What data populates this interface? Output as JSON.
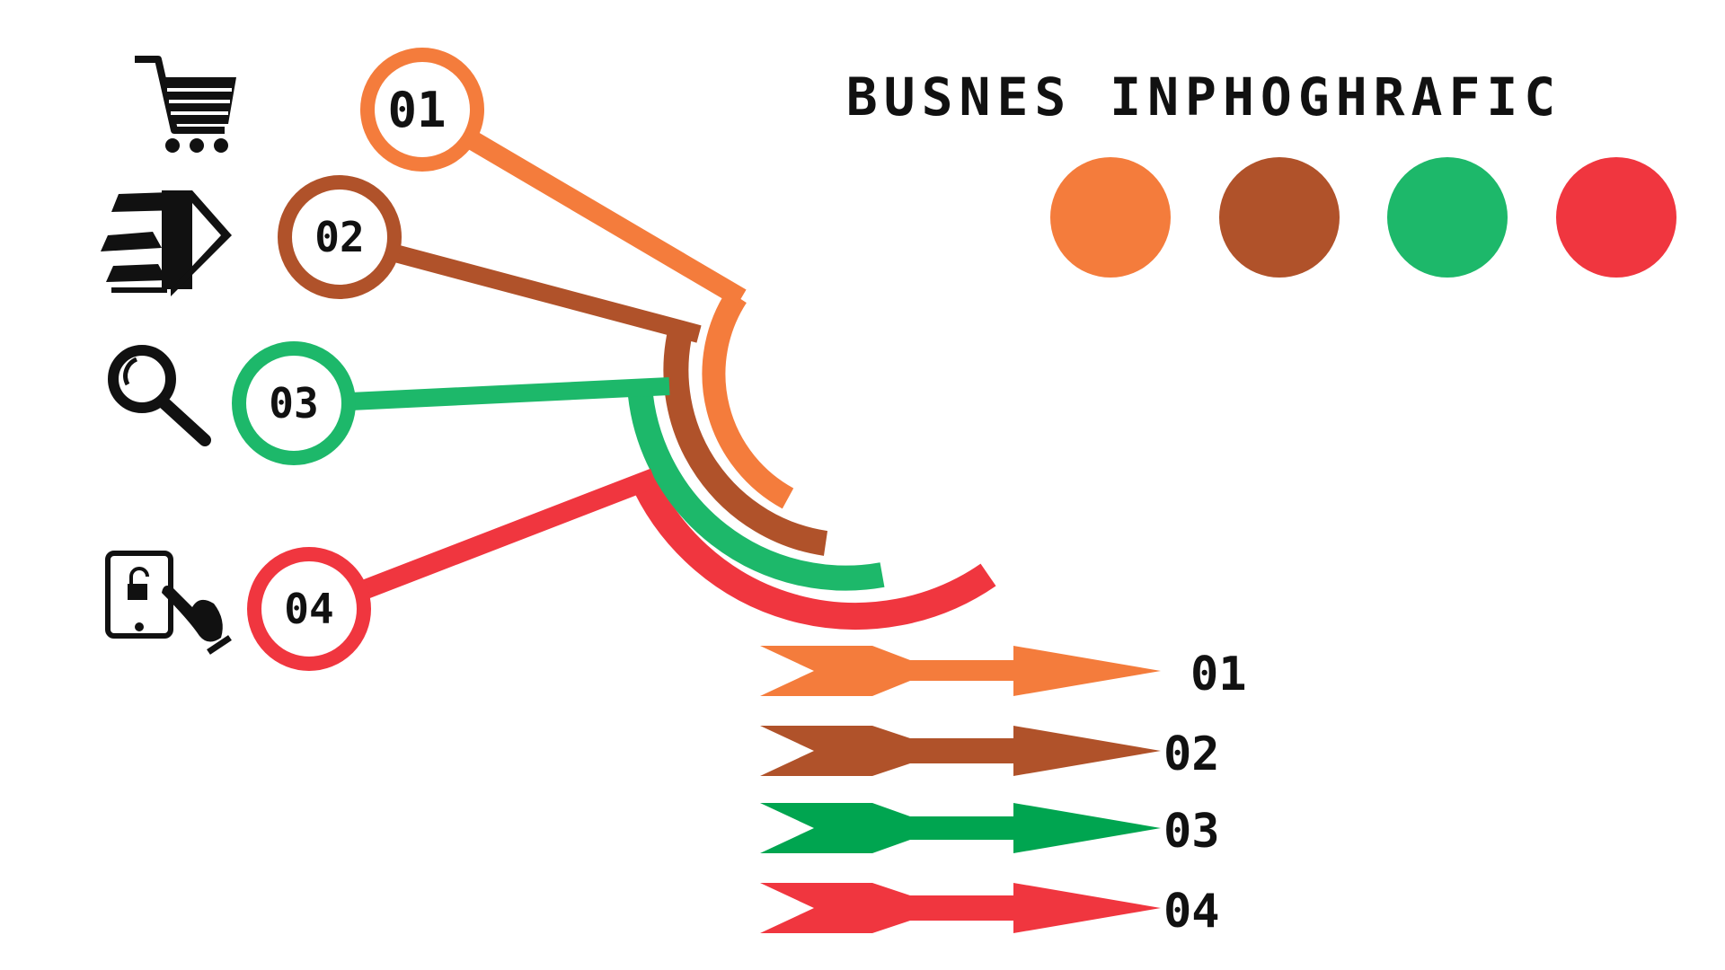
{
  "title": "BUSNES INPHOGHRAFIC",
  "colors": {
    "orange": "#f47c3c",
    "brown": "#b0522a",
    "green": "#1db86a",
    "red": "#f0363f",
    "ink": "#111111"
  },
  "swatches": [
    "orange",
    "brown",
    "green",
    "red"
  ],
  "items": [
    {
      "number": "01",
      "color": "orange",
      "icon": "shopping-cart-icon"
    },
    {
      "number": "02",
      "color": "brown",
      "icon": "fast-document-icon"
    },
    {
      "number": "03",
      "color": "green",
      "icon": "magnifier-search-icon"
    },
    {
      "number": "04",
      "color": "red",
      "icon": "tablet-unlock-hand-icon"
    }
  ],
  "legend": [
    {
      "label": "01",
      "color": "orange"
    },
    {
      "label": "02",
      "color": "brown"
    },
    {
      "label": "03",
      "color": "green"
    },
    {
      "label": "04",
      "color": "red"
    }
  ]
}
